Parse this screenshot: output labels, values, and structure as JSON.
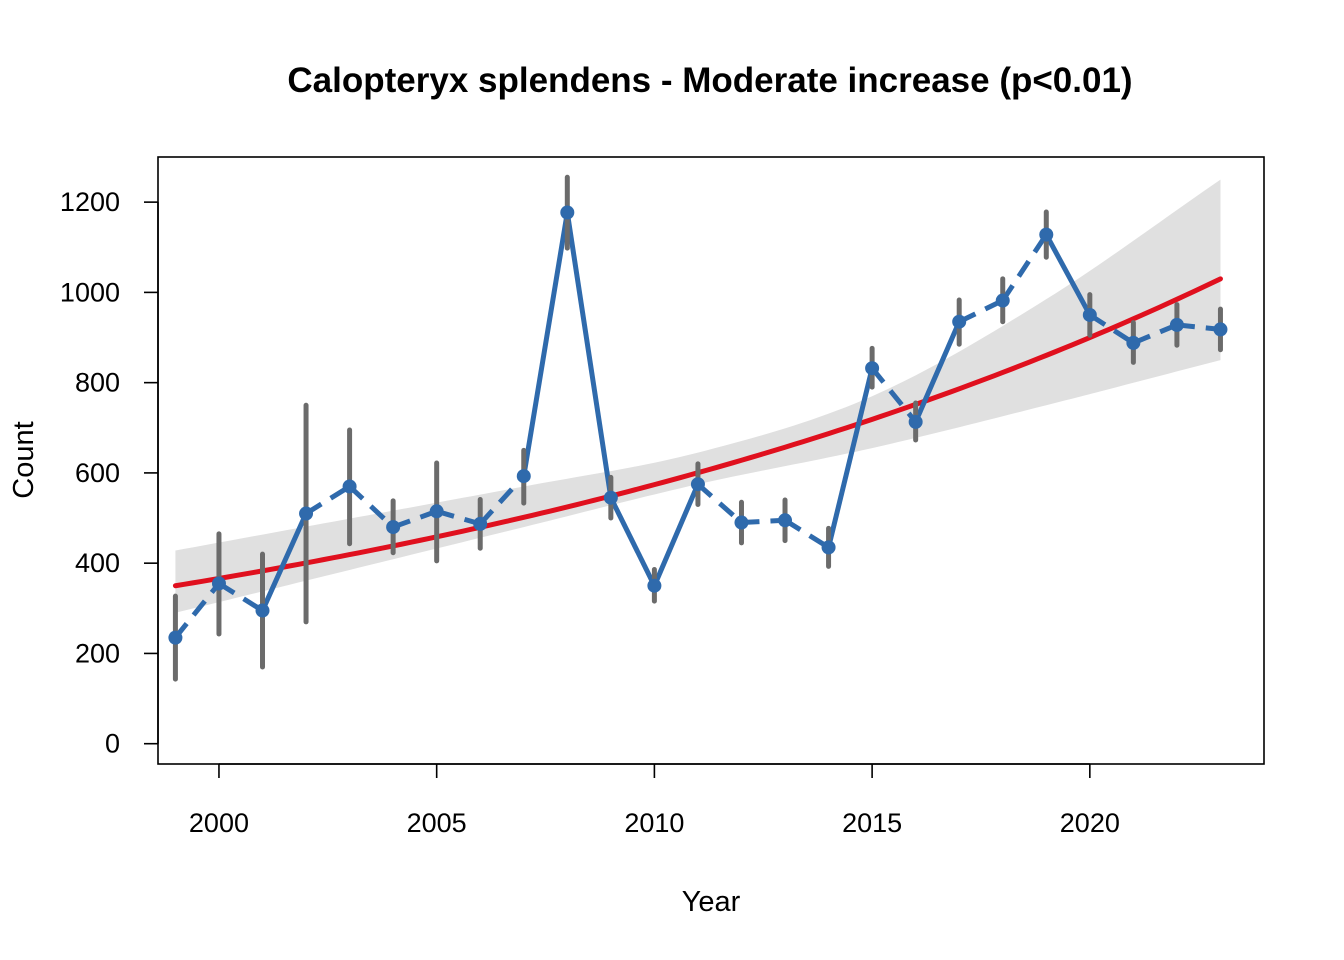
{
  "chart_data": {
    "type": "line",
    "title": "Calopteryx splendens - Moderate increase (p<0.01)",
    "xlabel": "Year",
    "ylabel": "Count",
    "xlim": [
      1998.6,
      2024.0
    ],
    "ylim": [
      -45,
      1300
    ],
    "xticks": [
      2000,
      2005,
      2010,
      2015,
      2020
    ],
    "yticks": [
      0,
      200,
      400,
      600,
      800,
      1000,
      1200
    ],
    "grid": false,
    "legend": "none",
    "colors": {
      "observed": "#2f6aac",
      "error_bars": "#6b6b6b",
      "trend": "#e0101e",
      "confidence_band": "#e0e0e0"
    },
    "observed": {
      "x": [
        1999,
        2000,
        2001,
        2002,
        2003,
        2004,
        2005,
        2006,
        2007,
        2008,
        2009,
        2010,
        2011,
        2012,
        2013,
        2014,
        2015,
        2016,
        2017,
        2018,
        2019,
        2020,
        2021,
        2022,
        2023
      ],
      "y": [
        235,
        355,
        295,
        510,
        570,
        480,
        515,
        487,
        593,
        1177,
        545,
        350,
        575,
        490,
        495,
        435,
        832,
        713,
        935,
        982,
        1128,
        950,
        888,
        928,
        918
      ],
      "lower": [
        143,
        243,
        170,
        270,
        443,
        423,
        405,
        433,
        533,
        1098,
        500,
        316,
        530,
        445,
        450,
        393,
        790,
        673,
        885,
        935,
        1078,
        905,
        845,
        883,
        873
      ],
      "upper": [
        327,
        465,
        420,
        750,
        695,
        538,
        622,
        541,
        650,
        1255,
        590,
        386,
        620,
        535,
        540,
        477,
        876,
        755,
        983,
        1030,
        1178,
        995,
        933,
        973,
        963
      ]
    },
    "trend": {
      "x": [
        1999,
        2023
      ],
      "start": 350,
      "end": 1030
    },
    "band": {
      "x": [
        1999,
        2007,
        2011,
        2015,
        2019,
        2023
      ],
      "lower": [
        290,
        480,
        575,
        655,
        750,
        850
      ],
      "upper": [
        428,
        570,
        645,
        770,
        985,
        1250
      ]
    }
  }
}
